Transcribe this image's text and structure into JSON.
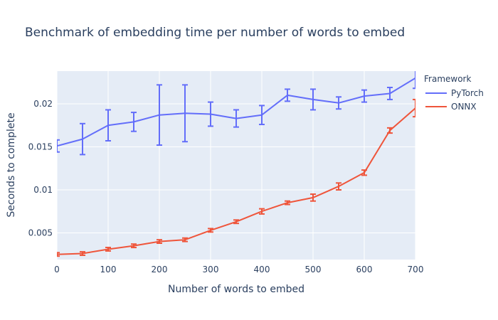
{
  "chart_data": {
    "type": "line",
    "title": "Benchmark of embedding time per number of words to embed",
    "xlabel": "Number of words to embed",
    "ylabel": "Seconds to complete",
    "xlim": [
      0,
      700
    ],
    "ylim": [
      0.0019,
      0.0238
    ],
    "x_ticks": [
      0,
      100,
      200,
      300,
      400,
      500,
      600,
      700
    ],
    "y_ticks": [
      0.005,
      0.01,
      0.015,
      0.02
    ],
    "y_tick_labels": [
      "0.005",
      "0.01",
      "0.015",
      "0.02"
    ],
    "grid": true,
    "legend": {
      "title": "Framework",
      "position": "right"
    },
    "x": [
      0,
      50,
      100,
      150,
      200,
      250,
      300,
      350,
      400,
      450,
      500,
      550,
      600,
      650,
      700
    ],
    "series": [
      {
        "name": "PyTorch",
        "color": "#636efa",
        "values": [
          0.0151,
          0.0159,
          0.0175,
          0.0179,
          0.0187,
          0.0189,
          0.0188,
          0.0183,
          0.0187,
          0.021,
          0.0205,
          0.0201,
          0.0209,
          0.0212,
          0.023
        ],
        "error": [
          0.0007,
          0.0018,
          0.0018,
          0.0011,
          0.0035,
          0.0033,
          0.0014,
          0.001,
          0.0011,
          0.0007,
          0.0012,
          0.0007,
          0.0007,
          0.0007,
          0.0012
        ]
      },
      {
        "name": "ONNX",
        "color": "#ef553b",
        "values": [
          0.0025,
          0.0026,
          0.0031,
          0.0035,
          0.004,
          0.0042,
          0.0053,
          0.0063,
          0.0075,
          0.0085,
          0.0091,
          0.0104,
          0.012,
          0.0169,
          0.0195
        ],
        "error": [
          0.0002,
          0.0002,
          0.0002,
          0.0002,
          0.0002,
          0.0002,
          0.0002,
          0.0002,
          0.0003,
          0.0002,
          0.0004,
          0.0004,
          0.0003,
          0.0003,
          0.001
        ]
      }
    ]
  }
}
